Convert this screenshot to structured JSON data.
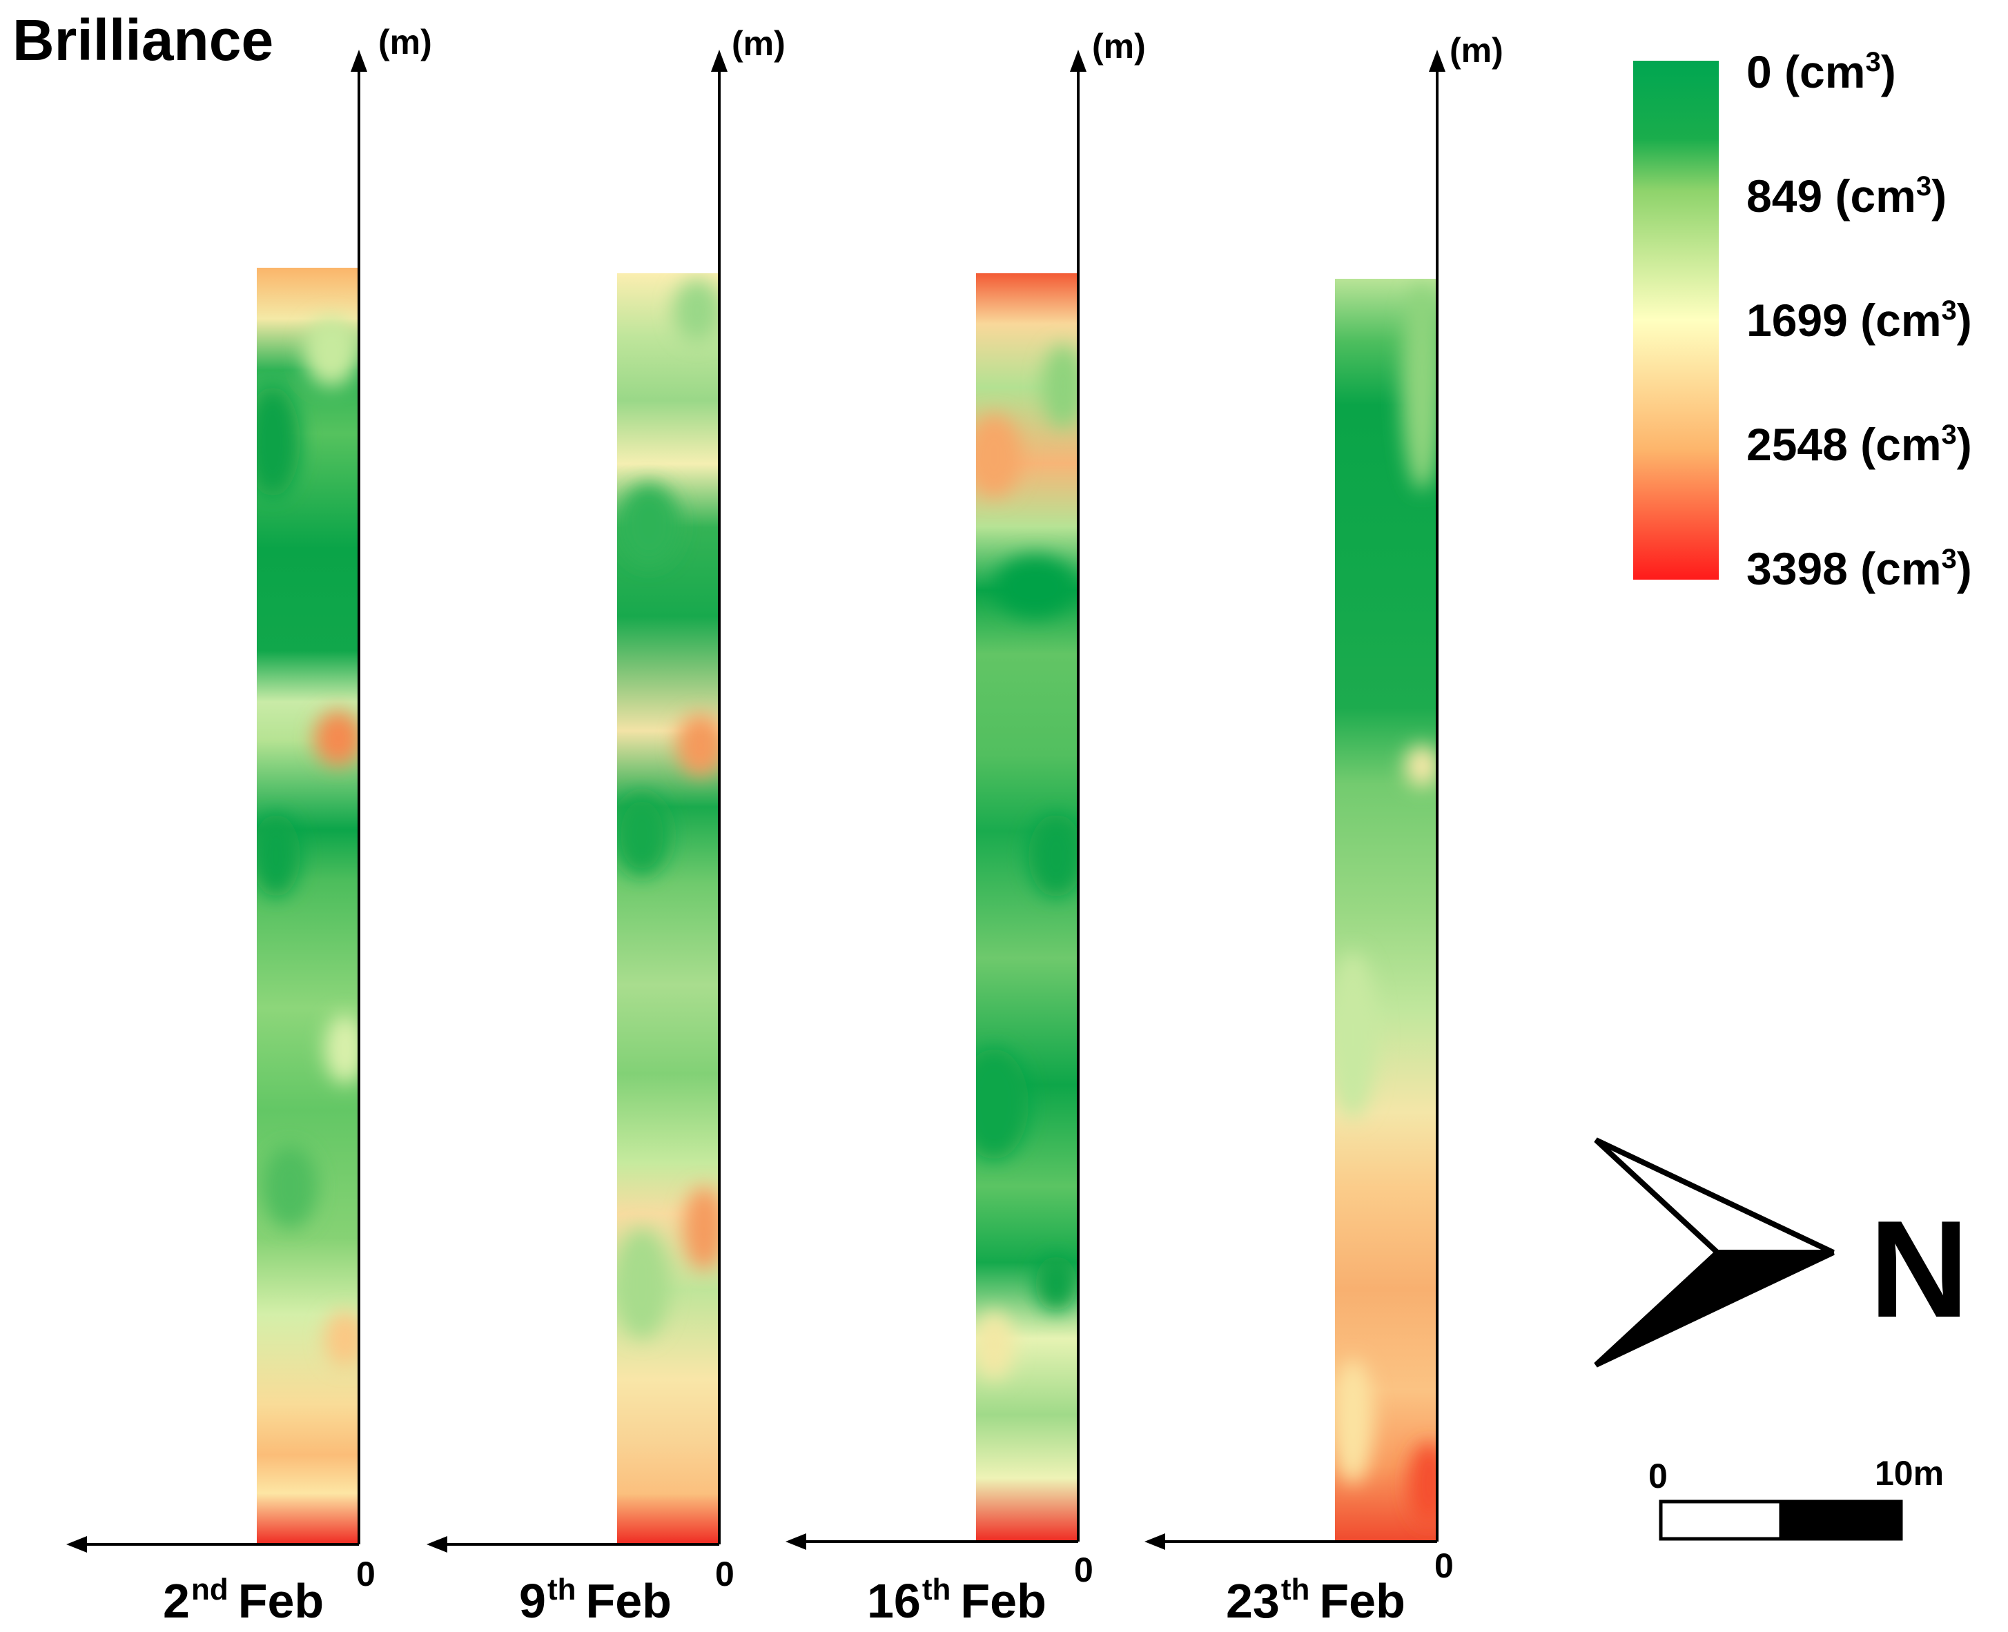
{
  "title": "Brilliance",
  "axis_unit": "(m)",
  "axis_origin": "0",
  "panels": [
    {
      "day": "2",
      "suffix": "nd",
      "month": "Feb"
    },
    {
      "day": "9",
      "suffix": "th",
      "month": "Feb"
    },
    {
      "day": "16",
      "suffix": "th",
      "month": "Feb"
    },
    {
      "day": "23",
      "suffix": "th",
      "month": "Feb"
    }
  ],
  "legend": {
    "items": [
      {
        "value": "0",
        "unit": "(cm",
        "exp": "3",
        "close": ")",
        "color": "#00a651"
      },
      {
        "value": "849",
        "unit": "(cm",
        "exp": "3",
        "close": ")",
        "color": "#8ed36b"
      },
      {
        "value": "1699",
        "unit": "(cm",
        "exp": "3",
        "close": ")",
        "color": "#ffffc0"
      },
      {
        "value": "2548",
        "unit": "(cm",
        "exp": "3",
        "close": ")",
        "color": "#fdb56b"
      },
      {
        "value": "3398",
        "unit": "(cm",
        "exp": "3",
        "close": ")",
        "color": "#ff1a1a"
      }
    ]
  },
  "north_arrow": {
    "letter": "N"
  },
  "scale_bar": {
    "start": "0",
    "end": "10m"
  }
}
